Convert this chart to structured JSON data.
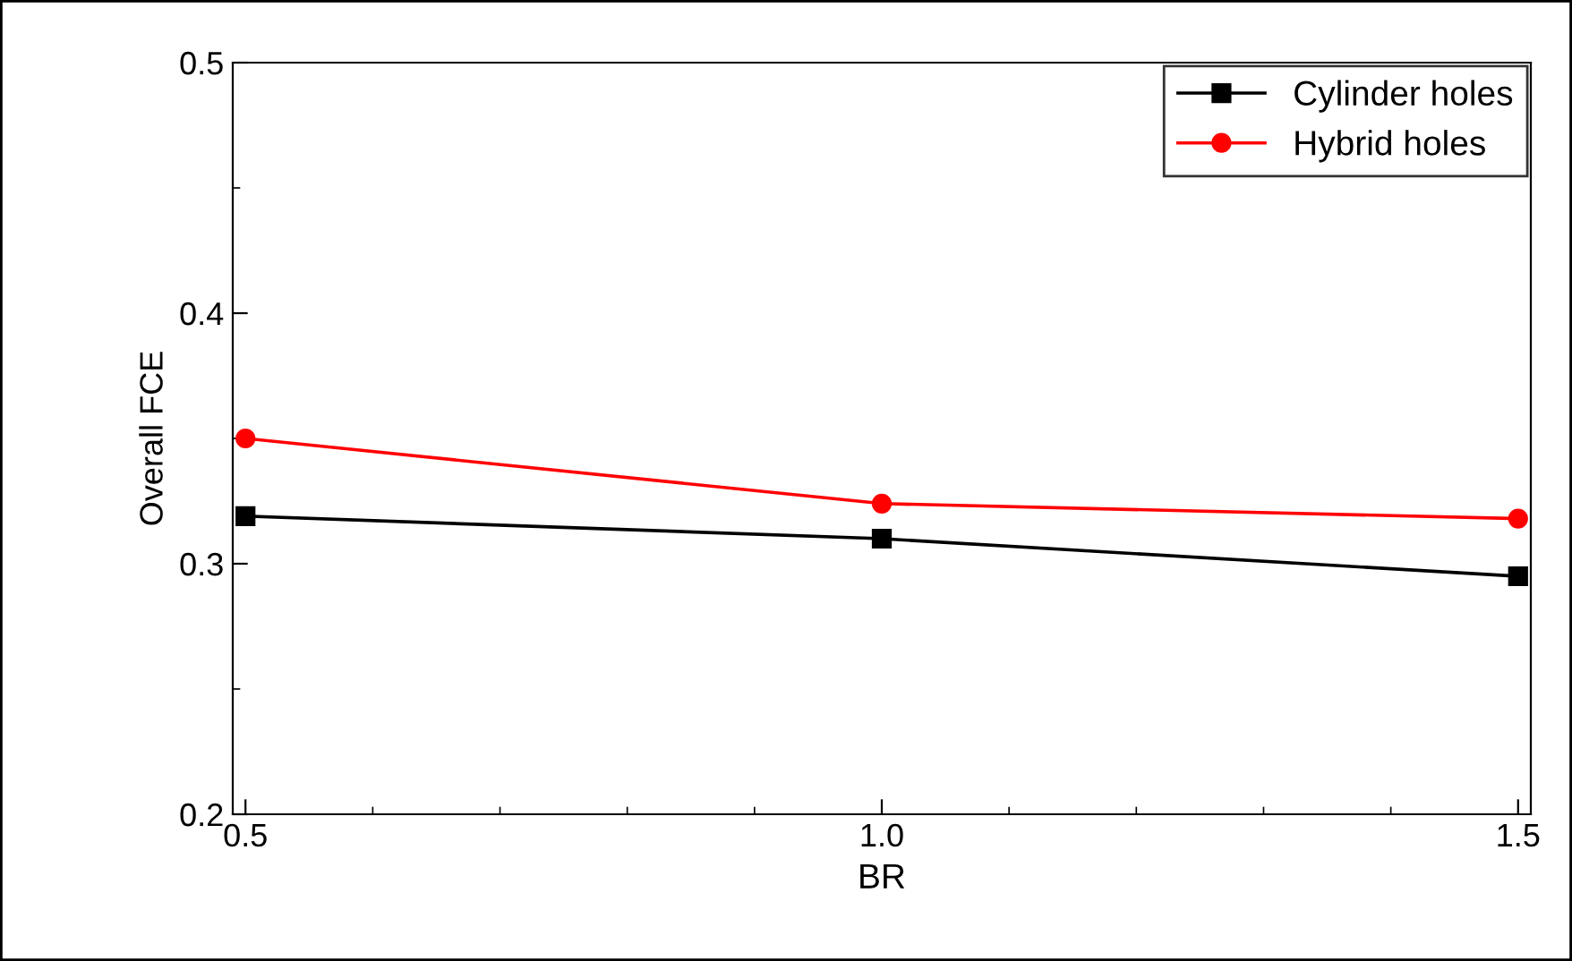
{
  "chart_data": {
    "type": "line",
    "xlabel": "BR",
    "ylabel": "Overall FCE",
    "x": [
      0.5,
      1.0,
      1.5
    ],
    "series": [
      {
        "name": "Cylinder holes",
        "color": "#000000",
        "marker": "square",
        "values": [
          0.319,
          0.31,
          0.295
        ]
      },
      {
        "name": "Hybrid holes",
        "color": "#ff0000",
        "marker": "circle",
        "values": [
          0.35,
          0.324,
          0.318
        ]
      }
    ],
    "xlim": [
      0.49,
      1.51
    ],
    "xticks": [
      {
        "value": 0.5,
        "label": "0.5"
      },
      {
        "value": 1.0,
        "label": "1.0"
      },
      {
        "value": 1.5,
        "label": "1.5"
      }
    ],
    "ylim": [
      0.2,
      0.5
    ],
    "yticks": [
      {
        "value": 0.2,
        "label": "0.2"
      },
      {
        "value": 0.3,
        "label": "0.3"
      },
      {
        "value": 0.4,
        "label": "0.4"
      },
      {
        "value": 0.5,
        "label": "0.5"
      }
    ],
    "grid": false,
    "legend": "top right",
    "line_style": "solid"
  }
}
